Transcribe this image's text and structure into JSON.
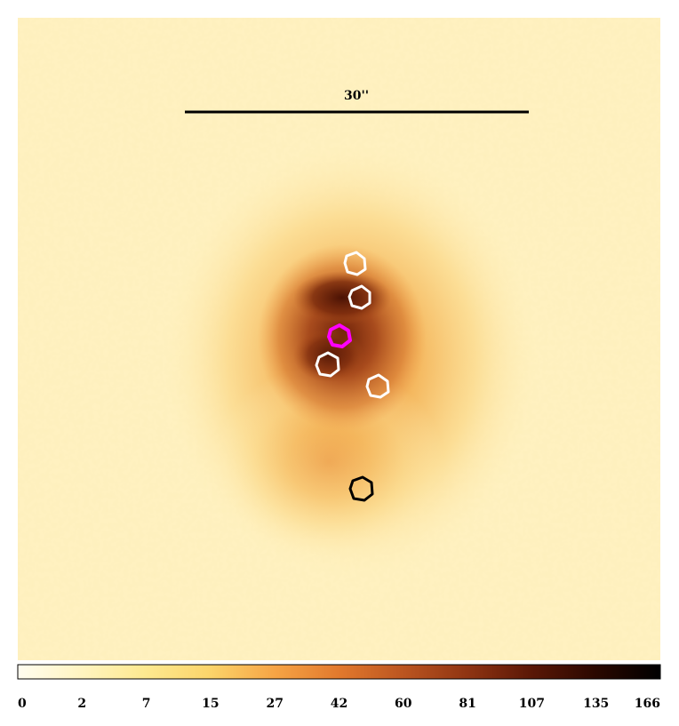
{
  "image": {
    "scale_bar_label": "30''",
    "colormap": [
      "#fffdf0",
      "#fff4c0",
      "#fde98f",
      "#fbd46a",
      "#f6a445",
      "#e2792d",
      "#bb5520",
      "#8f3412",
      "#5a1706",
      "#2a0800",
      "#000000"
    ],
    "colorbar_ticks": [
      "0",
      "2",
      "7",
      "15",
      "27",
      "42",
      "60",
      "81",
      "107",
      "135",
      "166"
    ],
    "source_markers": [
      {
        "name": "white-source-1",
        "color": "#ffffff"
      },
      {
        "name": "white-source-2",
        "color": "#ffffff"
      },
      {
        "name": "magenta-source",
        "color": "#ff00ff"
      },
      {
        "name": "white-source-3",
        "color": "#ffffff"
      },
      {
        "name": "white-source-4",
        "color": "#ffffff"
      },
      {
        "name": "black-source",
        "color": "#000000"
      }
    ]
  }
}
